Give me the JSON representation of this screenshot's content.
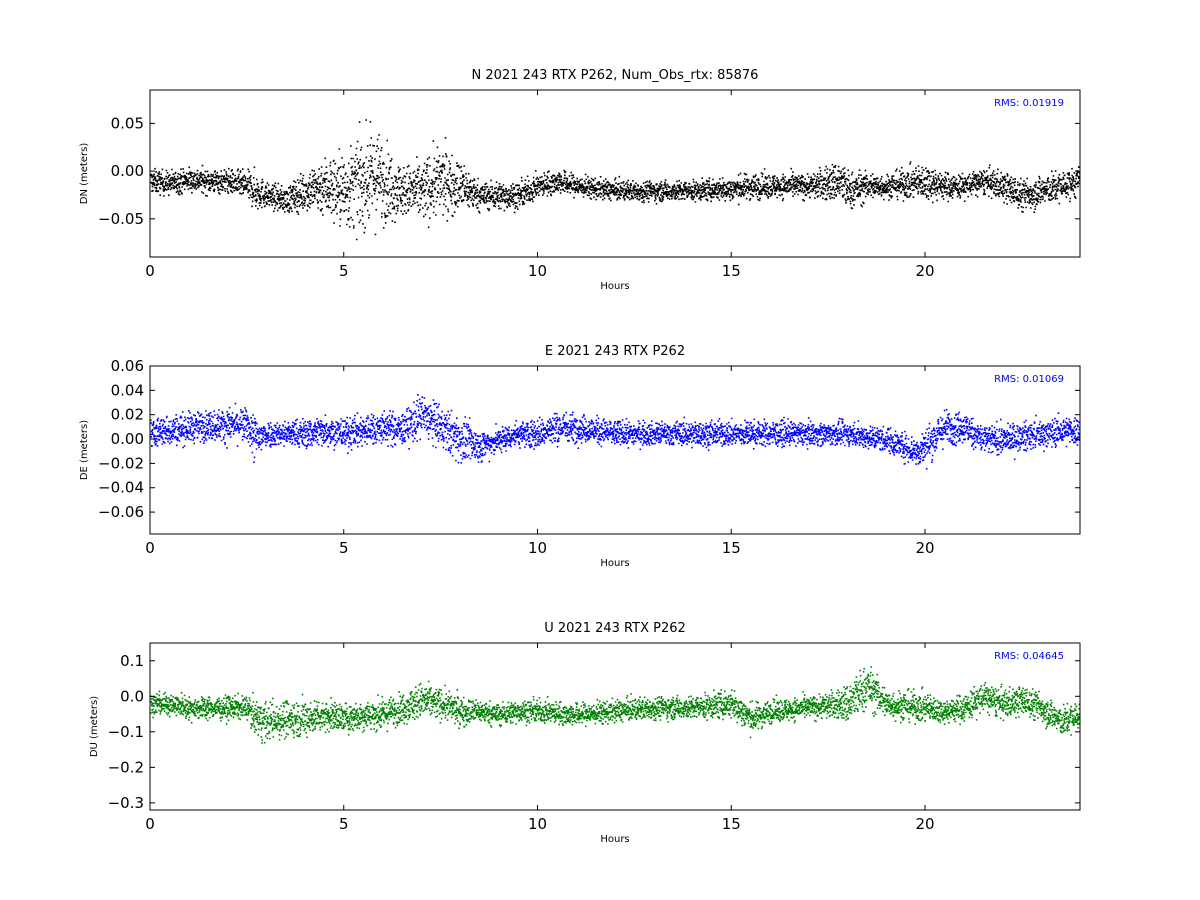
{
  "chart_data": [
    {
      "type": "scatter",
      "title": "N 2021 243 RTX  P262, Num_Obs_rtx: 85876",
      "xlabel": "Hours",
      "ylabel": "DN (meters)",
      "xlim": [
        0,
        24
      ],
      "ylim": [
        -0.09,
        0.085
      ],
      "xticks": [
        0,
        5,
        10,
        15,
        20
      ],
      "yticks": [
        -0.05,
        0.0,
        0.05
      ],
      "ytick_labels": [
        "−0.05",
        "0.00",
        "0.05"
      ],
      "color": "#000000",
      "rms_text": "RMS:  0.01919",
      "rms_color": "#0000ff",
      "grid": false,
      "series": [
        {
          "x": [
            0,
            0.5,
            1,
            1.5,
            2,
            2.5,
            2.7,
            3,
            3.5,
            4,
            4.5,
            5,
            5.5,
            5.8,
            6,
            6.5,
            7,
            7.5,
            8,
            8.5,
            9,
            9.5,
            10,
            10.5,
            11,
            12,
            13,
            14,
            15,
            15.5,
            16,
            17,
            17.8,
            18,
            18.5,
            19,
            20,
            20.5,
            21,
            21.5,
            22,
            22.5,
            23,
            23.5,
            24
          ],
          "values": [
            -0.01,
            -0.012,
            -0.008,
            -0.01,
            -0.01,
            -0.015,
            -0.02,
            -0.025,
            -0.03,
            -0.02,
            -0.015,
            -0.02,
            -0.01,
            -0.005,
            -0.01,
            -0.02,
            -0.02,
            -0.01,
            -0.015,
            -0.025,
            -0.025,
            -0.025,
            -0.015,
            -0.01,
            -0.015,
            -0.02,
            -0.02,
            -0.02,
            -0.018,
            -0.015,
            -0.015,
            -0.015,
            -0.01,
            -0.02,
            -0.015,
            -0.015,
            -0.01,
            -0.015,
            -0.015,
            -0.01,
            -0.015,
            -0.025,
            -0.02,
            -0.015,
            -0.01
          ],
          "spread": [
            0.012,
            0.012,
            0.012,
            0.012,
            0.012,
            0.014,
            0.02,
            0.012,
            0.013,
            0.02,
            0.03,
            0.04,
            0.045,
            0.048,
            0.04,
            0.025,
            0.03,
            0.035,
            0.025,
            0.014,
            0.014,
            0.013,
            0.012,
            0.012,
            0.011,
            0.01,
            0.01,
            0.01,
            0.012,
            0.013,
            0.012,
            0.012,
            0.022,
            0.02,
            0.014,
            0.012,
            0.018,
            0.014,
            0.012,
            0.013,
            0.015,
            0.016,
            0.016,
            0.015,
            0.015
          ]
        }
      ]
    },
    {
      "type": "scatter",
      "title": "E 2021 243 RTX  P262",
      "xlabel": "Hours",
      "ylabel": "DE (meters)",
      "xlim": [
        0,
        24
      ],
      "ylim": [
        -0.078,
        0.06
      ],
      "xticks": [
        0,
        5,
        10,
        15,
        20
      ],
      "yticks": [
        -0.06,
        -0.04,
        -0.02,
        0.0,
        0.02,
        0.04,
        0.06
      ],
      "ytick_labels": [
        "−0.06",
        "−0.04",
        "−0.02",
        "0.00",
        "0.02",
        "0.04",
        "0.06"
      ],
      "color": "#0000ff",
      "rms_text": "RMS:  0.01069",
      "rms_color": "#0000ff",
      "grid": false,
      "series": [
        {
          "x": [
            0,
            0.5,
            1,
            1.5,
            2,
            2.5,
            2.7,
            3,
            3.5,
            4,
            4.5,
            5,
            5.5,
            6,
            6.5,
            7,
            7.5,
            8,
            8.5,
            9,
            9.5,
            10,
            10.5,
            11,
            12,
            13,
            14,
            15,
            16,
            17,
            18,
            19,
            19.8,
            20,
            20.5,
            21,
            21.5,
            22,
            23,
            24
          ],
          "values": [
            0.005,
            0.008,
            0.01,
            0.012,
            0.012,
            0.012,
            0.0,
            0.005,
            0.005,
            0.005,
            0.008,
            0.005,
            0.008,
            0.01,
            0.008,
            0.02,
            0.01,
            0.0,
            -0.005,
            0.0,
            0.005,
            0.005,
            0.01,
            0.01,
            0.005,
            0.005,
            0.005,
            0.005,
            0.005,
            0.005,
            0.005,
            0.0,
            -0.01,
            -0.005,
            0.01,
            0.01,
            0.0,
            0.0,
            0.005,
            0.008
          ],
          "spread": [
            0.012,
            0.012,
            0.012,
            0.012,
            0.013,
            0.013,
            0.02,
            0.01,
            0.01,
            0.012,
            0.012,
            0.012,
            0.013,
            0.013,
            0.013,
            0.018,
            0.016,
            0.018,
            0.012,
            0.01,
            0.01,
            0.012,
            0.013,
            0.011,
            0.01,
            0.009,
            0.01,
            0.01,
            0.01,
            0.009,
            0.009,
            0.01,
            0.012,
            0.014,
            0.014,
            0.012,
            0.012,
            0.011,
            0.011,
            0.012
          ]
        }
      ]
    },
    {
      "type": "scatter",
      "title": "U 2021 243 RTX  P262",
      "xlabel": "Hours",
      "ylabel": "DU (meters)",
      "xlim": [
        0,
        24
      ],
      "ylim": [
        -0.32,
        0.15
      ],
      "xticks": [
        0,
        5,
        10,
        15,
        20
      ],
      "yticks": [
        -0.3,
        -0.2,
        -0.1,
        0.0,
        0.1
      ],
      "ytick_labels": [
        "−0.3",
        "−0.2",
        "−0.1",
        "0.0",
        "0.1"
      ],
      "color": "#008000",
      "rms_text": "RMS:  0.04645",
      "rms_color": "#0000ff",
      "grid": false,
      "series": [
        {
          "x": [
            0,
            0.5,
            1,
            1.5,
            2,
            2.5,
            2.7,
            3,
            3.5,
            4,
            4.5,
            5,
            5.5,
            6,
            6.5,
            7,
            7.5,
            8,
            8.5,
            9,
            9.5,
            10,
            11,
            12,
            13,
            14,
            15,
            15.5,
            16,
            17,
            17.8,
            18,
            18.5,
            19,
            20,
            20.5,
            21,
            21.5,
            22,
            22.5,
            23,
            23.5,
            24
          ],
          "values": [
            -0.02,
            -0.02,
            -0.03,
            -0.03,
            -0.03,
            -0.03,
            -0.06,
            -0.07,
            -0.06,
            -0.06,
            -0.05,
            -0.06,
            -0.05,
            -0.05,
            -0.03,
            -0.01,
            -0.02,
            -0.04,
            -0.04,
            -0.05,
            -0.04,
            -0.04,
            -0.05,
            -0.04,
            -0.03,
            -0.03,
            -0.02,
            -0.06,
            -0.04,
            -0.03,
            -0.02,
            -0.02,
            0.03,
            -0.02,
            -0.03,
            -0.04,
            -0.03,
            0.0,
            -0.02,
            -0.01,
            -0.03,
            -0.07,
            -0.05
          ],
          "spread": [
            0.03,
            0.03,
            0.03,
            0.03,
            0.03,
            0.03,
            0.05,
            0.05,
            0.05,
            0.05,
            0.04,
            0.04,
            0.04,
            0.04,
            0.04,
            0.05,
            0.04,
            0.04,
            0.03,
            0.03,
            0.03,
            0.03,
            0.03,
            0.03,
            0.03,
            0.03,
            0.04,
            0.04,
            0.03,
            0.03,
            0.04,
            0.06,
            0.06,
            0.04,
            0.04,
            0.03,
            0.04,
            0.04,
            0.04,
            0.04,
            0.04,
            0.04,
            0.04
          ]
        }
      ]
    }
  ]
}
